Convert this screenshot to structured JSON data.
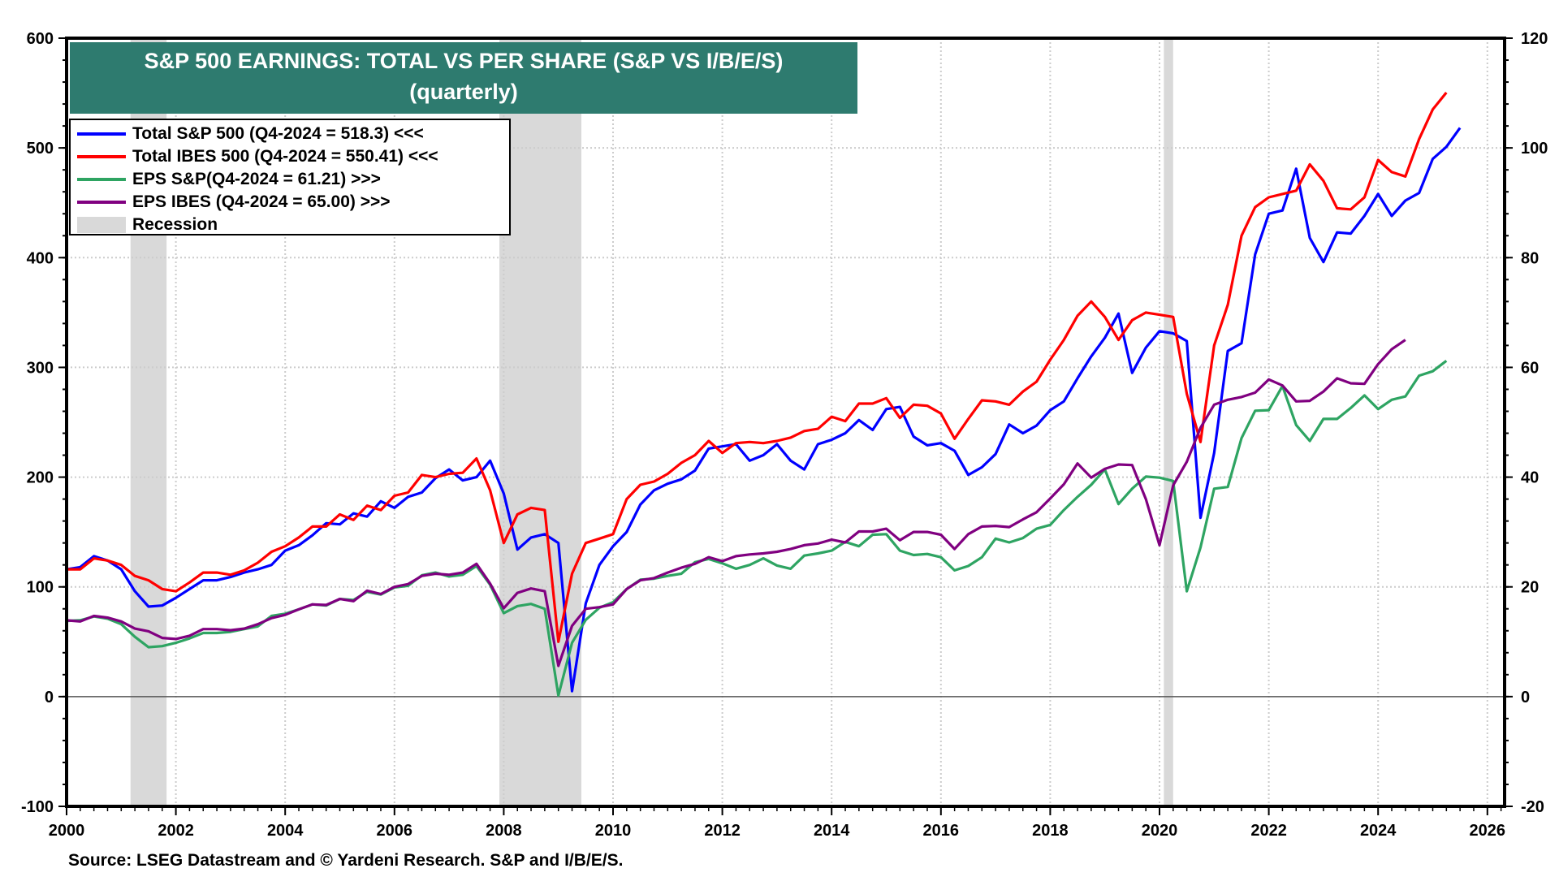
{
  "chart_data": {
    "type": "line",
    "title": "S&P 500 EARNINGS: TOTAL VS PER SHARE (S&P VS I/B/E/S)",
    "subtitle": "(quarterly)",
    "source": "Source: LSEG Datastream and © Yardeni Research. S&P and I/B/E/S.",
    "x_axis": {
      "min": 2000,
      "max": 2026.4,
      "ticks": [
        "2000",
        "2002",
        "2004",
        "2006",
        "2008",
        "2010",
        "2012",
        "2014",
        "2016",
        "2018",
        "2020",
        "2022",
        "2024",
        "2026"
      ],
      "grid": true
    },
    "y_left": {
      "min": -100,
      "max": 600,
      "ticks": [
        "-100",
        "0",
        "100",
        "200",
        "300",
        "400",
        "500",
        "600"
      ],
      "grid": true
    },
    "y_right": {
      "min": -20,
      "max": 120,
      "ticks": [
        "-20",
        "0",
        "20",
        "40",
        "60",
        "80",
        "100",
        "120"
      ]
    },
    "legend_position": "top-left",
    "recessions": [
      [
        2001.17,
        2001.83
      ],
      [
        2007.92,
        2009.42
      ],
      [
        2020.08,
        2020.25
      ]
    ],
    "recession_label": "Recession",
    "x_start": 2000.0,
    "x_step": 0.25,
    "series": [
      {
        "name": "Total S&P 500 (Q4-2024 = 518.3) <<<",
        "axis": "left",
        "color": "#0000ff",
        "values": [
          116,
          118,
          128,
          124,
          116,
          96,
          82,
          83,
          90,
          98,
          106,
          106,
          109,
          113,
          116,
          120,
          133,
          138,
          147,
          158,
          157,
          167,
          164,
          178,
          172,
          182,
          186,
          199,
          207,
          197,
          200,
          215,
          185,
          134,
          145,
          148,
          140,
          5,
          85,
          120,
          137,
          150,
          175,
          188,
          194,
          198,
          206,
          226,
          228,
          230,
          215,
          220,
          230,
          215,
          207,
          230,
          234,
          240,
          252,
          243,
          262,
          264,
          237,
          229,
          231,
          224,
          202,
          209,
          221,
          248,
          240,
          247,
          261,
          269,
          290,
          310,
          327,
          349,
          295,
          318,
          333,
          331,
          324,
          163,
          222,
          315,
          322,
          403,
          440,
          443,
          481,
          418,
          396,
          423,
          422,
          438,
          458,
          438,
          452,
          459,
          490,
          501,
          518.3
        ]
      },
      {
        "name": "Total IBES 500 (Q4-2024 = 550.41) <<<",
        "axis": "left",
        "color": "#ff0000",
        "values": [
          116,
          116,
          126,
          124,
          120,
          110,
          106,
          98,
          96,
          104,
          113,
          113,
          111,
          115,
          122,
          132,
          137,
          145,
          155,
          155,
          166,
          161,
          174,
          170,
          183,
          186,
          202,
          200,
          203,
          204,
          217,
          188,
          140,
          166,
          172,
          170,
          50,
          112,
          140,
          144,
          148,
          180,
          193,
          196,
          203,
          213,
          220,
          233,
          222,
          231,
          232,
          231,
          233,
          236,
          242,
          244,
          255,
          251,
          267,
          267,
          272,
          254,
          266,
          265,
          258,
          235,
          253,
          270,
          269,
          266,
          278,
          287,
          307,
          325,
          347,
          360,
          346,
          325,
          343,
          350,
          348,
          346,
          276,
          232,
          320,
          357,
          420,
          446,
          455,
          458,
          461,
          485,
          470,
          445,
          444,
          455,
          489,
          478,
          474,
          508,
          535,
          550.41
        ]
      },
      {
        "name": "EPS S&P(Q4-2024 = 61.21) >>>",
        "axis": "right",
        "color": "#2ea462",
        "values": [
          13.8,
          13.9,
          14.6,
          14.2,
          13.2,
          10.9,
          9.0,
          9.2,
          9.8,
          10.6,
          11.6,
          11.6,
          11.8,
          12.3,
          12.8,
          14.7,
          15.1,
          15.9,
          16.8,
          16.6,
          17.8,
          17.6,
          19.1,
          18.6,
          19.9,
          20.2,
          22.1,
          22.6,
          21.9,
          22.2,
          23.8,
          20.4,
          15.2,
          16.5,
          16.9,
          16.0,
          0.2,
          9.8,
          14.0,
          16.2,
          17.2,
          19.6,
          21.3,
          21.5,
          22.0,
          22.4,
          24.5,
          25.1,
          24.3,
          23.3,
          24.0,
          25.2,
          23.9,
          23.3,
          25.7,
          26.1,
          26.6,
          28.2,
          27.4,
          29.5,
          29.6,
          26.6,
          25.8,
          26.0,
          25.4,
          23.0,
          23.8,
          25.4,
          28.8,
          28.1,
          28.9,
          30.6,
          31.3,
          34.0,
          36.4,
          38.6,
          41.4,
          35.1,
          37.9,
          40.1,
          39.9,
          39.3,
          19.2,
          27.2,
          37.9,
          38.2,
          47.1,
          52.1,
          52.2,
          56.6,
          49.5,
          46.6,
          50.6,
          50.6,
          52.6,
          54.9,
          52.4,
          54.1,
          54.7,
          58.5,
          59.3,
          61.21
        ]
      },
      {
        "name": "EPS IBES (Q4-2024 = 65.00) >>>",
        "axis": "right",
        "color": "#800080",
        "values": [
          13.9,
          13.7,
          14.7,
          14.4,
          13.7,
          12.4,
          11.9,
          10.7,
          10.5,
          11.1,
          12.3,
          12.3,
          12.1,
          12.4,
          13.2,
          14.3,
          14.9,
          15.9,
          16.8,
          16.7,
          17.8,
          17.4,
          19.3,
          18.7,
          20.0,
          20.5,
          22.0,
          22.4,
          22.2,
          22.6,
          24.2,
          20.6,
          16.1,
          18.9,
          19.7,
          19.2,
          5.6,
          12.9,
          16.0,
          16.3,
          16.8,
          19.6,
          21.2,
          21.6,
          22.6,
          23.5,
          24.2,
          25.4,
          24.7,
          25.6,
          25.9,
          26.1,
          26.4,
          26.9,
          27.6,
          27.9,
          28.6,
          28.1,
          30.1,
          30.1,
          30.6,
          28.5,
          30.0,
          30.0,
          29.5,
          26.9,
          29.6,
          31.0,
          31.1,
          30.9,
          32.3,
          33.6,
          36.1,
          38.7,
          42.5,
          39.9,
          41.5,
          42.3,
          42.2,
          36.0,
          27.6,
          38.5,
          42.8,
          49.0,
          53.2,
          54.1,
          54.6,
          55.4,
          57.8,
          56.7,
          53.8,
          53.9,
          55.6,
          58.0,
          57.1,
          57.0,
          60.6,
          63.3,
          65.0
        ]
      }
    ],
    "legend": [
      {
        "label": "Total S&P 500 (Q4-2024 = 518.3) <<<",
        "color": "#0000ff"
      },
      {
        "label": "Total IBES 500 (Q4-2024 = 550.41) <<<",
        "color": "#ff0000"
      },
      {
        "label": "EPS S&P(Q4-2024 = 61.21) >>>",
        "color": "#2ea462"
      },
      {
        "label": "EPS IBES (Q4-2024 = 65.00) >>>",
        "color": "#800080"
      },
      {
        "label": "Recession",
        "color": "#d9d9d9"
      }
    ]
  }
}
